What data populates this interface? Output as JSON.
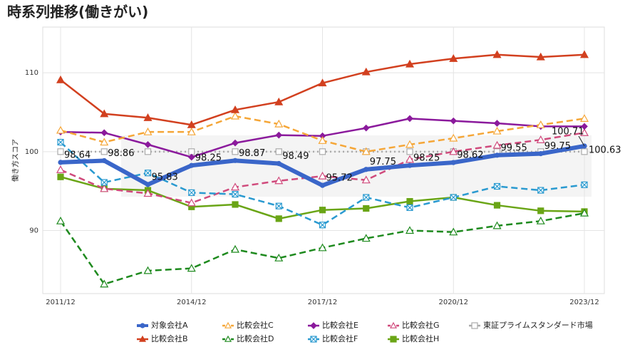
{
  "chart_data": {
    "type": "line",
    "title": "時系列推移(働きがい)",
    "y_label": "働き方スコア",
    "categories": [
      "2011/12",
      null,
      null,
      "2014/12",
      null,
      null,
      "2017/12",
      null,
      null,
      "2020/12",
      null,
      null,
      "2023/12"
    ],
    "ylim": [
      82,
      115.8
    ],
    "yticks": [
      90,
      100,
      110
    ],
    "grid": true,
    "legend": "bottom",
    "series": [
      {
        "name": "対象会社A",
        "color": "#3a66c9",
        "marker": "circle",
        "dash": false,
        "width": 6,
        "show_labels": true,
        "values": [
          98.64,
          98.86,
          95.83,
          98.25,
          98.87,
          98.49,
          95.72,
          97.75,
          98.25,
          98.62,
          99.55,
          99.75,
          100.71
        ]
      },
      {
        "name": "比較会社B",
        "color": "#d2401f",
        "marker": "triangle-filled",
        "dash": false,
        "width": 2.5,
        "values": [
          109.1,
          104.8,
          104.3,
          103.4,
          105.3,
          106.3,
          108.7,
          110.1,
          111.1,
          111.8,
          112.3,
          112.0,
          112.3
        ]
      },
      {
        "name": "比較会社C",
        "color": "#f5a637",
        "marker": "triangle",
        "dash": true,
        "width": 2.5,
        "values": [
          102.7,
          101.2,
          102.5,
          102.5,
          104.5,
          103.5,
          101.4,
          100.0,
          100.9,
          101.7,
          102.6,
          103.4,
          104.2
        ]
      },
      {
        "name": "比較会社D",
        "color": "#1e8a1e",
        "marker": "triangle",
        "dash": true,
        "width": 2.5,
        "values": [
          91.2,
          83.2,
          84.9,
          85.2,
          87.6,
          86.5,
          87.8,
          89.0,
          90.0,
          89.8,
          90.6,
          91.2,
          92.2
        ]
      },
      {
        "name": "比較会社E",
        "color": "#8b1a9c",
        "marker": "diamond",
        "dash": false,
        "width": 2.5,
        "values": [
          102.5,
          102.4,
          100.9,
          99.3,
          101.1,
          102.1,
          102.0,
          103.0,
          104.2,
          103.9,
          103.6,
          103.2,
          103.2
        ]
      },
      {
        "name": "比較会社F",
        "color": "#2a9ad0",
        "marker": "square-x",
        "dash": true,
        "width": 2.5,
        "values": [
          101.2,
          96.1,
          97.3,
          94.8,
          94.6,
          93.1,
          90.7,
          94.2,
          92.9,
          94.2,
          95.6,
          95.1,
          95.8
        ]
      },
      {
        "name": "比較会社G",
        "color": "#d04a7c",
        "marker": "triangle",
        "dash": true,
        "width": 2.5,
        "values": [
          97.7,
          95.3,
          94.7,
          93.5,
          95.5,
          96.3,
          96.9,
          96.4,
          99.0,
          100.0,
          100.8,
          101.5,
          102.4
        ]
      },
      {
        "name": "比較会社H",
        "color": "#6aa516",
        "marker": "square-filled",
        "dash": false,
        "width": 2.5,
        "values": [
          96.8,
          95.3,
          95.1,
          93.0,
          93.3,
          91.5,
          92.6,
          92.8,
          93.7,
          94.2,
          93.2,
          92.5,
          92.4
        ]
      },
      {
        "name": "東証プライムスタンダード市場",
        "color": "#aaaaaa",
        "marker": "square",
        "dash": "dot",
        "width": 2.5,
        "values": [
          100,
          100,
          100,
          100,
          100,
          100,
          100,
          100,
          100,
          100,
          100,
          100,
          100
        ]
      }
    ],
    "annotation": "100.63"
  }
}
